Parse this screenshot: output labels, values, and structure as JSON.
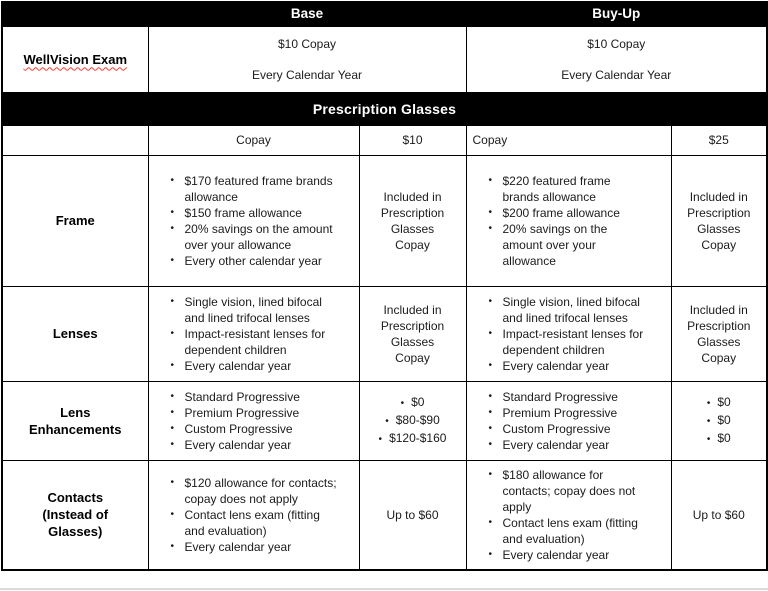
{
  "bullet_glyph": "•",
  "colors": {
    "header_bg": "#000000",
    "header_text": "#ffffff",
    "border": "#000000",
    "body_text": "#1b1b1b",
    "spellcheck_squiggle": "#ff3b30"
  },
  "plan_header": {
    "base": "Base",
    "buyup": "Buy-Up"
  },
  "wellvision": {
    "label": "WellVision Exam",
    "base_lines": [
      "$10 Copay",
      "Every Calendar Year"
    ],
    "buyup_lines": [
      "$10 Copay",
      "Every Calendar Year"
    ]
  },
  "section_header": "Prescription Glasses",
  "copay_header": {
    "base_label": "Copay",
    "base_value": "$10",
    "buyup_label": "Copay",
    "buyup_value": "$25"
  },
  "rows": {
    "frame": {
      "label_lines": [
        "Frame"
      ],
      "base_bullets": [
        "$170 featured frame brands allowance",
        "$150 frame allowance",
        "20% savings on the amount over your allowance",
        "Every other calendar year"
      ],
      "base_copay": "Included in Prescription Glasses Copay",
      "buyup_bullets": [
        "$220 featured frame brands allowance",
        "$200 frame allowance",
        "20% savings on the amount over your allowance"
      ],
      "buyup_copay": "Included in Prescription Glasses Copay"
    },
    "lenses": {
      "label_lines": [
        "Lenses"
      ],
      "base_bullets": [
        "Single vision, lined bifocal and lined trifocal lenses",
        "Impact-resistant lenses for dependent children",
        "Every calendar year"
      ],
      "base_copay": "Included in Prescription Glasses Copay",
      "buyup_bullets": [
        "Single vision, lined bifocal and lined trifocal lenses",
        "Impact-resistant lenses for dependent children",
        "Every calendar year"
      ],
      "buyup_copay": "Included in Prescription Glasses Copay"
    },
    "lens_enhancements": {
      "label_lines": [
        "Lens",
        "Enhancements"
      ],
      "base_bullets": [
        "Standard Progressive",
        "Premium Progressive",
        "Custom Progressive",
        "Every calendar year"
      ],
      "base_copay_bullets": [
        "$0",
        "$80-$90",
        "$120-$160"
      ],
      "buyup_bullets": [
        "Standard Progressive",
        "Premium Progressive",
        "Custom Progressive",
        "Every calendar year"
      ],
      "buyup_copay_bullets": [
        "$0",
        "$0",
        "$0"
      ]
    },
    "contacts": {
      "label_lines": [
        "Contacts",
        "(Instead of",
        "Glasses)"
      ],
      "base_bullets": [
        "$120 allowance for contacts; copay does not apply",
        "Contact lens exam (fitting and evaluation)",
        "Every calendar year"
      ],
      "base_copay": "Up to $60",
      "buyup_bullets": [
        "$180 allowance for contacts; copay does not apply",
        "Contact lens exam (fitting and evaluation)",
        "Every calendar year"
      ],
      "buyup_copay": "Up to $60"
    }
  }
}
